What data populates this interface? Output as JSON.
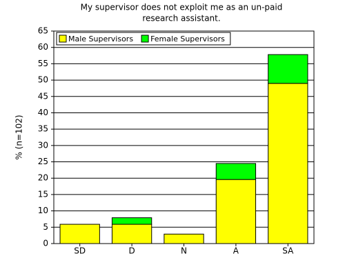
{
  "chart_data": {
    "type": "stacked_bar",
    "title": [
      "My supervisor does not exploit me as an un-paid",
      "research assistant."
    ],
    "y_label": "% (n=102)",
    "categories": [
      "SD",
      "D",
      "N",
      "A",
      "SA"
    ],
    "series": [
      {
        "name": "Male Supervisors",
        "color": "#ffff00",
        "values": [
          5.9,
          5.9,
          2.9,
          19.6,
          49.0
        ]
      },
      {
        "name": "Female Supervisors",
        "color": "#00ff00",
        "values": [
          0,
          2.0,
          0,
          4.9,
          8.8
        ]
      }
    ],
    "ylim": [
      0,
      65
    ],
    "yticks": [
      0,
      5,
      10,
      15,
      20,
      25,
      30,
      35,
      40,
      45,
      50,
      55,
      60,
      65
    ],
    "grid": true,
    "legend": "top-left"
  }
}
